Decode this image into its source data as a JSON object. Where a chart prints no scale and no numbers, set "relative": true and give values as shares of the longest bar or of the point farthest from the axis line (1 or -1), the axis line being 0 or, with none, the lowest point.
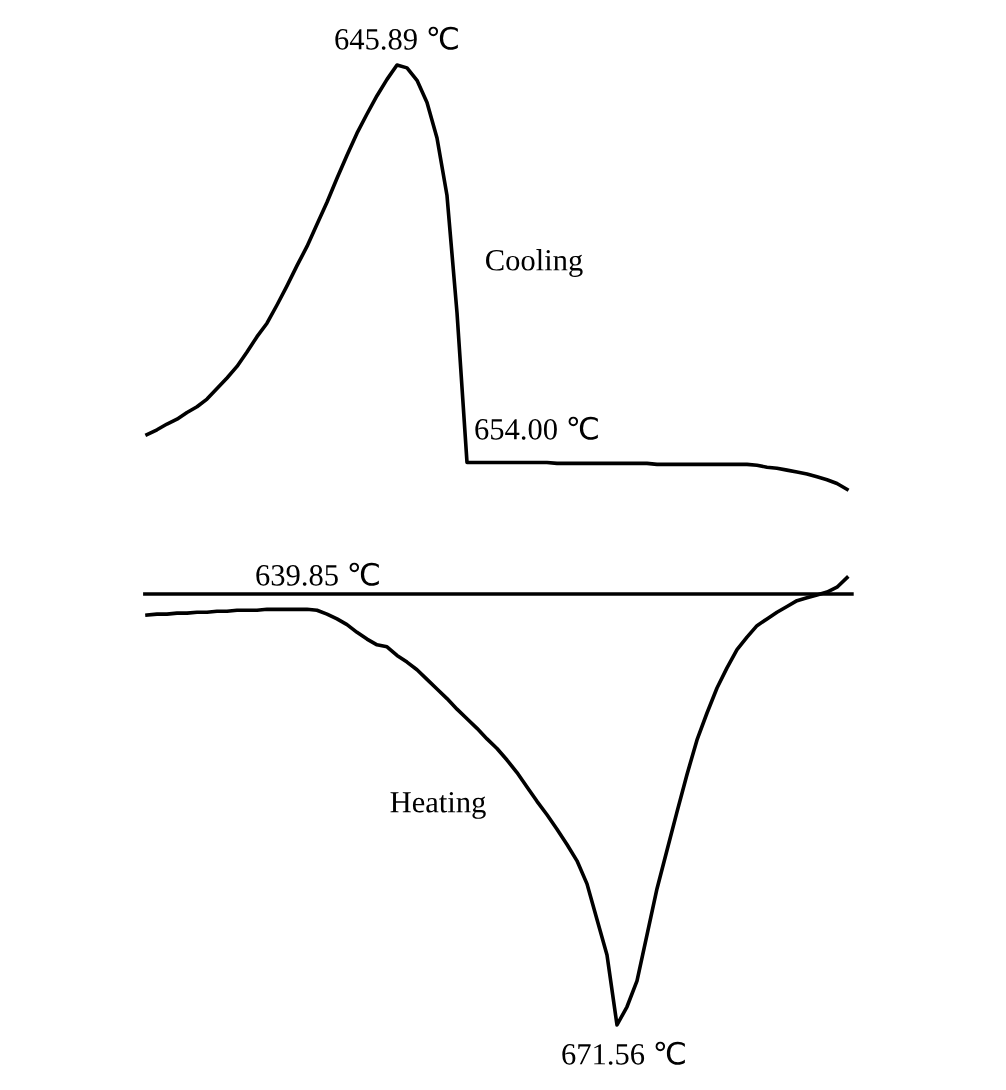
{
  "chart_data": {
    "type": "line",
    "relative": true,
    "legend": false,
    "marker": "none",
    "line_style": "solid",
    "categories": [
      null,
      null,
      null,
      null,
      null,
      null,
      null,
      null,
      null,
      null,
      null,
      null,
      null,
      null,
      null,
      null,
      null,
      null,
      null,
      null,
      null,
      null,
      null,
      null,
      null,
      null,
      null,
      null,
      null,
      null,
      null,
      null,
      null,
      null,
      null,
      null,
      null,
      null,
      null,
      null,
      null,
      null,
      null,
      null,
      null,
      null,
      null,
      null,
      null,
      null,
      null,
      null,
      null,
      null,
      null,
      null,
      null,
      null,
      null,
      null,
      null,
      null,
      null,
      null,
      null,
      null,
      null,
      null,
      null,
      null,
      null
    ],
    "series": [
      {
        "name": "Cooling",
        "color": "#000000",
        "values": [
          0.615,
          0.62,
          0.626,
          0.631,
          0.638,
          0.644,
          0.652,
          0.663,
          0.674,
          0.686,
          0.701,
          0.717,
          0.731,
          0.75,
          0.77,
          0.791,
          0.811,
          0.834,
          0.857,
          0.882,
          0.906,
          0.929,
          0.949,
          0.968,
          0.985,
          1.0,
          0.997,
          0.984,
          0.961,
          0.924,
          0.864,
          0.742,
          0.586,
          0.586,
          0.586,
          0.586,
          0.586,
          0.586,
          0.586,
          0.586,
          0.586,
          0.585,
          0.585,
          0.585,
          0.585,
          0.585,
          0.585,
          0.585,
          0.585,
          0.585,
          0.585,
          0.584,
          0.584,
          0.584,
          0.584,
          0.584,
          0.584,
          0.584,
          0.584,
          0.584,
          0.584,
          0.583,
          0.581,
          0.58,
          0.578,
          0.576,
          0.574,
          0.571,
          0.568,
          0.564,
          0.558
        ]
      },
      {
        "name": "Heating",
        "color": "#000000",
        "values": [
          0.427,
          0.428,
          0.428,
          0.429,
          0.429,
          0.43,
          0.43,
          0.431,
          0.431,
          0.432,
          0.432,
          0.432,
          0.433,
          0.433,
          0.433,
          0.433,
          0.433,
          0.432,
          0.428,
          0.423,
          0.417,
          0.409,
          0.402,
          0.396,
          0.394,
          0.385,
          0.378,
          0.37,
          0.36,
          0.35,
          0.34,
          0.329,
          0.319,
          0.309,
          0.298,
          0.288,
          0.276,
          0.263,
          0.248,
          0.233,
          0.219,
          0.204,
          0.188,
          0.171,
          0.147,
          0.11,
          0.073,
          0.0,
          0.019,
          0.046,
          0.094,
          0.142,
          0.182,
          0.222,
          0.261,
          0.297,
          0.325,
          0.351,
          0.372,
          0.391,
          0.404,
          0.416,
          0.423,
          0.43,
          0.436,
          0.442,
          0.445,
          0.448,
          0.451,
          0.456,
          0.466
        ]
      }
    ],
    "ref_lines": [
      {
        "axis": "y",
        "value": 0.449,
        "color": "#000000",
        "line_style": "solid"
      }
    ],
    "annotations": [
      "645.89 ℃",
      "654.00 ℃",
      "639.85 ℃",
      "671.56 ℃"
    ]
  }
}
